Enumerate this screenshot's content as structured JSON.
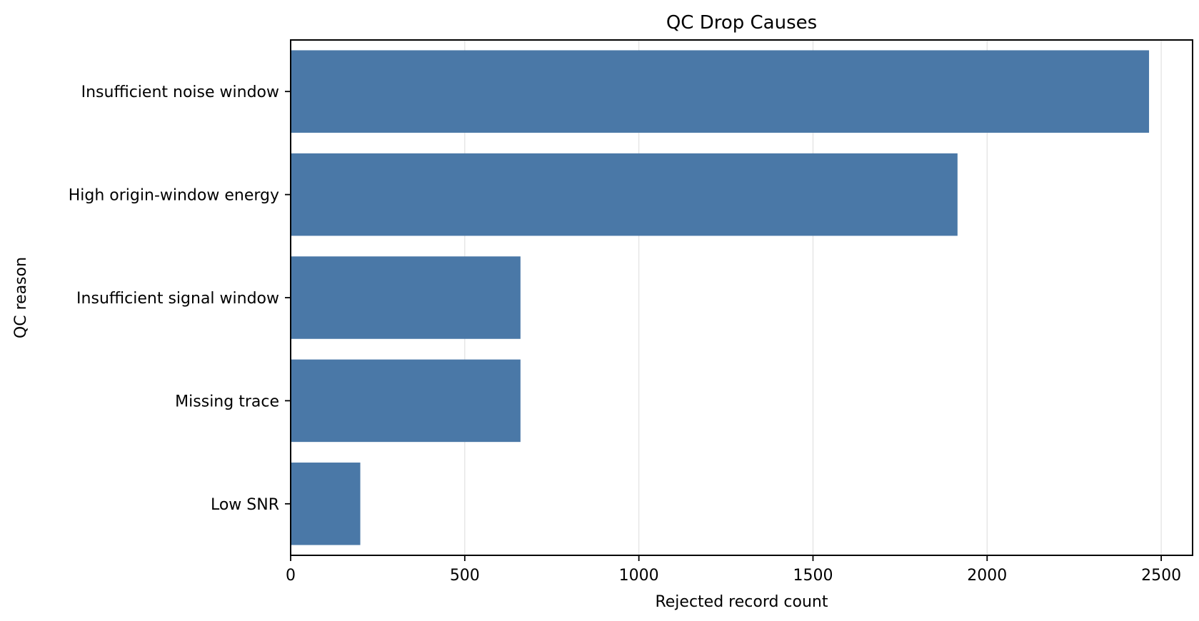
{
  "chart_data": {
    "type": "bar",
    "orientation": "horizontal",
    "title": "QC Drop Causes",
    "xlabel": "Rejected record count",
    "ylabel": "QC reason",
    "categories": [
      "Insufficient noise window",
      "High origin-window energy",
      "Insufficient signal window",
      "Missing trace",
      "Low SNR"
    ],
    "values": [
      2465,
      1915,
      660,
      660,
      200
    ],
    "xlim": [
      0,
      2590
    ],
    "xticks": [
      0,
      500,
      1000,
      1500,
      2000,
      2500
    ],
    "grid": "x",
    "bar_color": "#4a78a7"
  }
}
